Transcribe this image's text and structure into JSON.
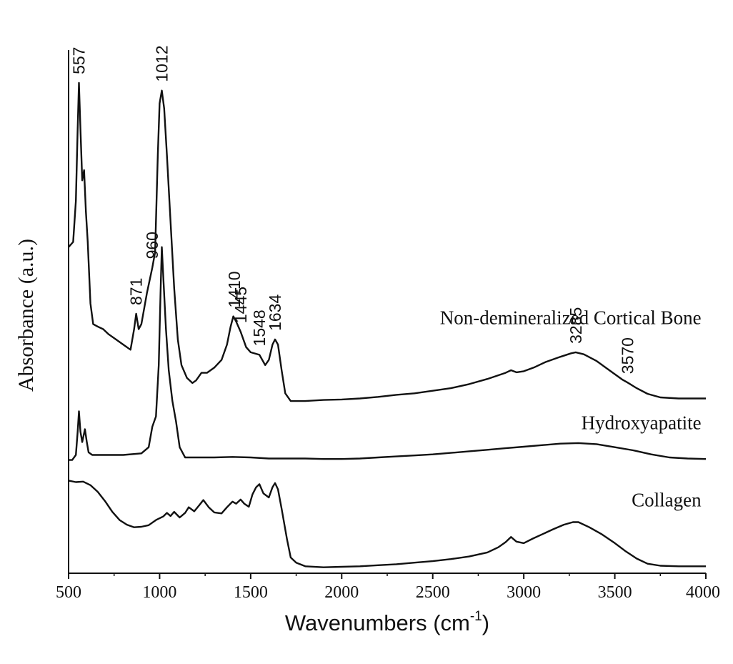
{
  "chart_data": {
    "type": "line",
    "xlabel": "Wavenumbers (cm",
    "xlabel_superscript": "-1",
    "xlabel_suffix": ")",
    "ylabel": "Absorbance (a.u.)",
    "xlim": [
      500,
      4000
    ],
    "ylim": [
      0,
      100
    ],
    "x_ticks": [
      "500",
      "1000",
      "1500",
      "2000",
      "2500",
      "3000",
      "3500",
      "4000"
    ],
    "grid": false,
    "legend": "none",
    "series": [
      {
        "name": "Non-demineralized Cortical Bone",
        "color": "#111111",
        "points": [
          [
            500,
            63
          ],
          [
            525,
            64
          ],
          [
            540,
            72
          ],
          [
            550,
            86
          ],
          [
            557,
            95
          ],
          [
            565,
            86
          ],
          [
            575,
            76
          ],
          [
            585,
            78
          ],
          [
            595,
            70
          ],
          [
            605,
            64
          ],
          [
            620,
            52
          ],
          [
            635,
            48
          ],
          [
            660,
            47.5
          ],
          [
            690,
            47
          ],
          [
            720,
            46
          ],
          [
            760,
            45
          ],
          [
            800,
            44
          ],
          [
            840,
            43
          ],
          [
            860,
            47
          ],
          [
            871,
            50
          ],
          [
            885,
            47
          ],
          [
            900,
            48
          ],
          [
            930,
            54
          ],
          [
            960,
            59
          ],
          [
            975,
            62
          ],
          [
            990,
            81
          ],
          [
            1000,
            91
          ],
          [
            1012,
            93.5
          ],
          [
            1025,
            90
          ],
          [
            1040,
            81
          ],
          [
            1060,
            68
          ],
          [
            1080,
            55
          ],
          [
            1100,
            45
          ],
          [
            1120,
            40
          ],
          [
            1150,
            37.5
          ],
          [
            1180,
            36.5
          ],
          [
            1200,
            37
          ],
          [
            1230,
            38.5
          ],
          [
            1260,
            38.5
          ],
          [
            1300,
            39.5
          ],
          [
            1340,
            41
          ],
          [
            1370,
            44
          ],
          [
            1390,
            47.5
          ],
          [
            1405,
            49.5
          ],
          [
            1420,
            48.5
          ],
          [
            1445,
            46.5
          ],
          [
            1475,
            43.5
          ],
          [
            1500,
            42.5
          ],
          [
            1548,
            42
          ],
          [
            1580,
            40
          ],
          [
            1600,
            41
          ],
          [
            1620,
            44
          ],
          [
            1634,
            45
          ],
          [
            1650,
            44
          ],
          [
            1670,
            39
          ],
          [
            1690,
            34.5
          ],
          [
            1720,
            33
          ],
          [
            1800,
            33
          ],
          [
            1900,
            33.2
          ],
          [
            2000,
            33.3
          ],
          [
            2100,
            33.5
          ],
          [
            2200,
            33.8
          ],
          [
            2300,
            34.2
          ],
          [
            2400,
            34.5
          ],
          [
            2500,
            35
          ],
          [
            2600,
            35.5
          ],
          [
            2700,
            36.3
          ],
          [
            2800,
            37.3
          ],
          [
            2900,
            38.5
          ],
          [
            2930,
            39
          ],
          [
            2960,
            38.6
          ],
          [
            3000,
            38.8
          ],
          [
            3060,
            39.6
          ],
          [
            3120,
            40.6
          ],
          [
            3200,
            41.6
          ],
          [
            3260,
            42.3
          ],
          [
            3285,
            42.5
          ],
          [
            3330,
            42.1
          ],
          [
            3400,
            40.8
          ],
          [
            3470,
            39
          ],
          [
            3540,
            37.2
          ],
          [
            3570,
            36.6
          ],
          [
            3620,
            35.5
          ],
          [
            3680,
            34.4
          ],
          [
            3750,
            33.7
          ],
          [
            3850,
            33.5
          ],
          [
            4000,
            33.5
          ]
        ]
      },
      {
        "name": "Hydroxyapatite",
        "color": "#111111",
        "points": [
          [
            500,
            21.5
          ],
          [
            520,
            21.5
          ],
          [
            540,
            22.5
          ],
          [
            550,
            27
          ],
          [
            557,
            31
          ],
          [
            565,
            27
          ],
          [
            575,
            25
          ],
          [
            590,
            27.5
          ],
          [
            600,
            25
          ],
          [
            610,
            23
          ],
          [
            630,
            22.5
          ],
          [
            700,
            22.5
          ],
          [
            800,
            22.5
          ],
          [
            900,
            22.8
          ],
          [
            940,
            24
          ],
          [
            960,
            28
          ],
          [
            980,
            30
          ],
          [
            995,
            40
          ],
          [
            1005,
            54
          ],
          [
            1012,
            63
          ],
          [
            1022,
            56
          ],
          [
            1035,
            47
          ],
          [
            1050,
            39
          ],
          [
            1070,
            33
          ],
          [
            1090,
            29
          ],
          [
            1110,
            24
          ],
          [
            1140,
            22
          ],
          [
            1200,
            22
          ],
          [
            1300,
            22
          ],
          [
            1400,
            22.1
          ],
          [
            1500,
            22
          ],
          [
            1600,
            21.8
          ],
          [
            1700,
            21.8
          ],
          [
            1800,
            21.8
          ],
          [
            1900,
            21.7
          ],
          [
            2000,
            21.7
          ],
          [
            2100,
            21.8
          ],
          [
            2200,
            22
          ],
          [
            2300,
            22.2
          ],
          [
            2400,
            22.4
          ],
          [
            2500,
            22.6
          ],
          [
            2600,
            22.9
          ],
          [
            2700,
            23.2
          ],
          [
            2800,
            23.5
          ],
          [
            2900,
            23.8
          ],
          [
            3000,
            24.1
          ],
          [
            3100,
            24.4
          ],
          [
            3200,
            24.7
          ],
          [
            3300,
            24.8
          ],
          [
            3400,
            24.6
          ],
          [
            3500,
            24
          ],
          [
            3600,
            23.4
          ],
          [
            3700,
            22.6
          ],
          [
            3800,
            22
          ],
          [
            3900,
            21.8
          ],
          [
            4000,
            21.7
          ]
        ]
      },
      {
        "name": "Collagen",
        "color": "#111111",
        "points": [
          [
            500,
            17.5
          ],
          [
            540,
            17.2
          ],
          [
            580,
            17.3
          ],
          [
            620,
            16.6
          ],
          [
            660,
            15.3
          ],
          [
            700,
            13.5
          ],
          [
            740,
            11.4
          ],
          [
            780,
            9.8
          ],
          [
            820,
            8.9
          ],
          [
            860,
            8.4
          ],
          [
            900,
            8.5
          ],
          [
            940,
            8.8
          ],
          [
            980,
            9.8
          ],
          [
            1020,
            10.5
          ],
          [
            1040,
            11.2
          ],
          [
            1060,
            10.6
          ],
          [
            1080,
            11.4
          ],
          [
            1110,
            10.3
          ],
          [
            1140,
            11.2
          ],
          [
            1160,
            12.3
          ],
          [
            1190,
            11.5
          ],
          [
            1220,
            12.8
          ],
          [
            1240,
            13.7
          ],
          [
            1270,
            12.3
          ],
          [
            1300,
            11.3
          ],
          [
            1340,
            11.1
          ],
          [
            1370,
            12.3
          ],
          [
            1400,
            13.4
          ],
          [
            1420,
            13
          ],
          [
            1445,
            13.8
          ],
          [
            1465,
            13
          ],
          [
            1490,
            12.4
          ],
          [
            1510,
            14.8
          ],
          [
            1530,
            16.2
          ],
          [
            1548,
            16.8
          ],
          [
            1570,
            15
          ],
          [
            1600,
            14.2
          ],
          [
            1620,
            16.2
          ],
          [
            1634,
            17
          ],
          [
            1650,
            15.8
          ],
          [
            1670,
            12
          ],
          [
            1700,
            6
          ],
          [
            1720,
            2.5
          ],
          [
            1750,
            1.5
          ],
          [
            1800,
            0.8
          ],
          [
            1900,
            0.6
          ],
          [
            2000,
            0.7
          ],
          [
            2100,
            0.8
          ],
          [
            2200,
            1
          ],
          [
            2300,
            1.2
          ],
          [
            2400,
            1.5
          ],
          [
            2500,
            1.8
          ],
          [
            2600,
            2.2
          ],
          [
            2700,
            2.7
          ],
          [
            2800,
            3.5
          ],
          [
            2860,
            4.5
          ],
          [
            2900,
            5.5
          ],
          [
            2930,
            6.5
          ],
          [
            2960,
            5.6
          ],
          [
            3000,
            5.3
          ],
          [
            3050,
            6.2
          ],
          [
            3100,
            7
          ],
          [
            3160,
            8
          ],
          [
            3220,
            8.9
          ],
          [
            3270,
            9.4
          ],
          [
            3300,
            9.4
          ],
          [
            3360,
            8.4
          ],
          [
            3430,
            7
          ],
          [
            3500,
            5.3
          ],
          [
            3560,
            3.7
          ],
          [
            3620,
            2.3
          ],
          [
            3680,
            1.3
          ],
          [
            3750,
            0.9
          ],
          [
            3850,
            0.8
          ],
          [
            4000,
            0.8
          ]
        ]
      }
    ],
    "series_labels": [
      {
        "text": "Non-demineralized Cortical Bone",
        "x": 3975,
        "y": 48
      },
      {
        "text": "Hydroxyapatite",
        "x": 3975,
        "y": 27.5
      },
      {
        "text": "Collagen",
        "x": 3975,
        "y": 12.5
      }
    ],
    "peak_annotations": [
      {
        "text": "557",
        "x": 557,
        "y": 95
      },
      {
        "text": "1012",
        "x": 1012,
        "y": 93.5
      },
      {
        "text": "960",
        "x": 960,
        "y": 59
      },
      {
        "text": "871",
        "x": 871,
        "y": 50
      },
      {
        "text": "1410",
        "x": 1410,
        "y": 49.5
      },
      {
        "text": "1445",
        "x": 1445,
        "y": 46.5
      },
      {
        "text": "1548",
        "x": 1548,
        "y": 42
      },
      {
        "text": "1634",
        "x": 1634,
        "y": 45
      },
      {
        "text": "3285",
        "x": 3285,
        "y": 42.5
      },
      {
        "text": "3570",
        "x": 3570,
        "y": 36.6
      }
    ]
  }
}
